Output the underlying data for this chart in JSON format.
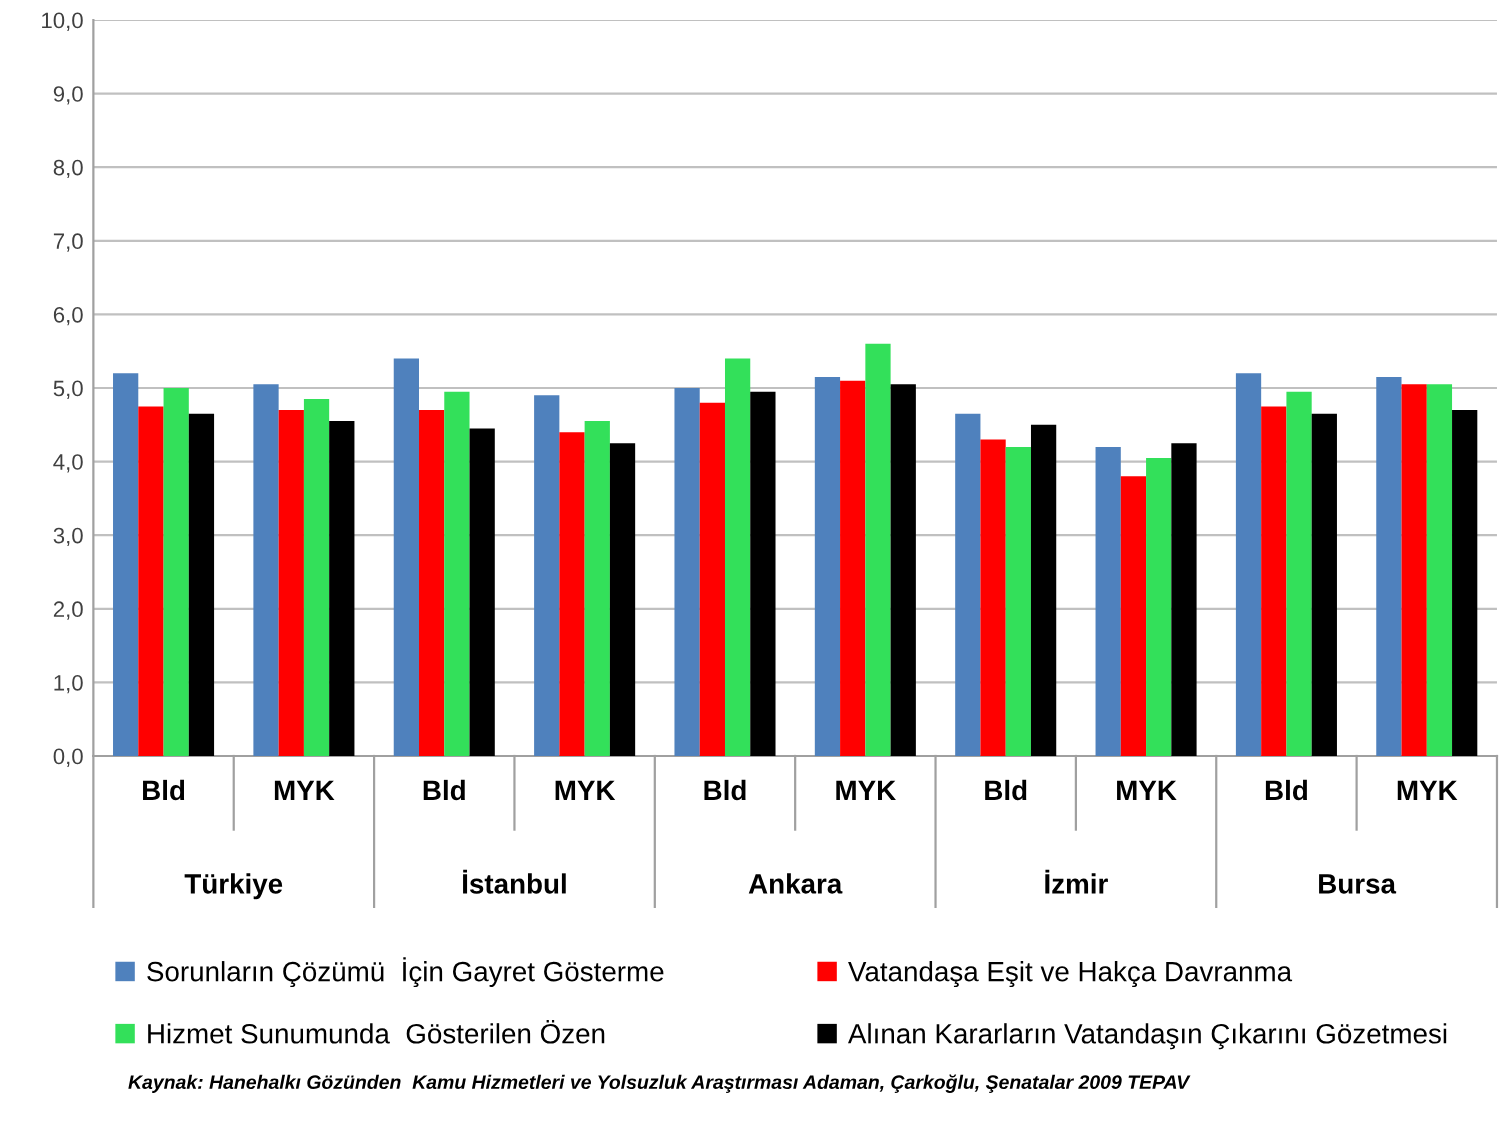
{
  "chart_data": {
    "type": "bar",
    "categories": [
      "Bld",
      "MYK",
      "Bld",
      "MYK",
      "Bld",
      "MYK",
      "Bld",
      "MYK",
      "Bld",
      "MYK"
    ],
    "series": [
      {
        "name": "Sorunların Çözümü  İçin Gayret Gösterme",
        "color": "#4f81bd",
        "values": [
          5.2,
          5.05,
          5.4,
          4.9,
          5.0,
          5.15,
          4.65,
          4.2,
          5.2,
          5.15
        ]
      },
      {
        "name": "Vatandaşa Eşit ve Hakça Davranma",
        "color": "#ff0000",
        "values": [
          4.75,
          4.7,
          4.7,
          4.4,
          4.8,
          5.1,
          4.3,
          3.8,
          4.75,
          5.05
        ]
      },
      {
        "name": "Hizmet Sunumunda  Gösterilen Özen",
        "color": "#33e05a",
        "values": [
          5.0,
          4.85,
          4.95,
          4.55,
          5.4,
          5.6,
          4.2,
          4.05,
          4.95,
          5.05
        ]
      },
      {
        "name": "Alınan Kararların Vatandaşın Çıkarını Gözetmesi",
        "color": "#000000",
        "values": [
          4.65,
          4.55,
          4.45,
          4.25,
          4.95,
          5.05,
          4.5,
          4.25,
          4.65,
          4.7
        ]
      }
    ],
    "ylim": [
      0,
      10
    ],
    "yticks": [
      {
        "value": 0,
        "label": "0,0"
      },
      {
        "value": 1,
        "label": "1,0"
      },
      {
        "value": 2,
        "label": "2,0"
      },
      {
        "value": 3,
        "label": "3,0"
      },
      {
        "value": 4,
        "label": "4,0"
      },
      {
        "value": 5,
        "label": "5,0"
      },
      {
        "value": 6,
        "label": "6,0"
      },
      {
        "value": 7,
        "label": "7,0"
      },
      {
        "value": 8,
        "label": "8,0"
      },
      {
        "value": 9,
        "label": "9,0"
      },
      {
        "value": 10,
        "label": "10,0"
      }
    ],
    "grid": "y",
    "legend": "bottom",
    "annotations": [
      "Türkiye",
      "İstanbul",
      "Ankara",
      "İzmir",
      "Bursa",
      "Kaynak: Hanehalkı Gözünden  Kamu Hizmetleri ve Yolsuzluk Araştırması Adaman, Çarkoğlu, Şenatalar 2009 TEPAV"
    ]
  }
}
